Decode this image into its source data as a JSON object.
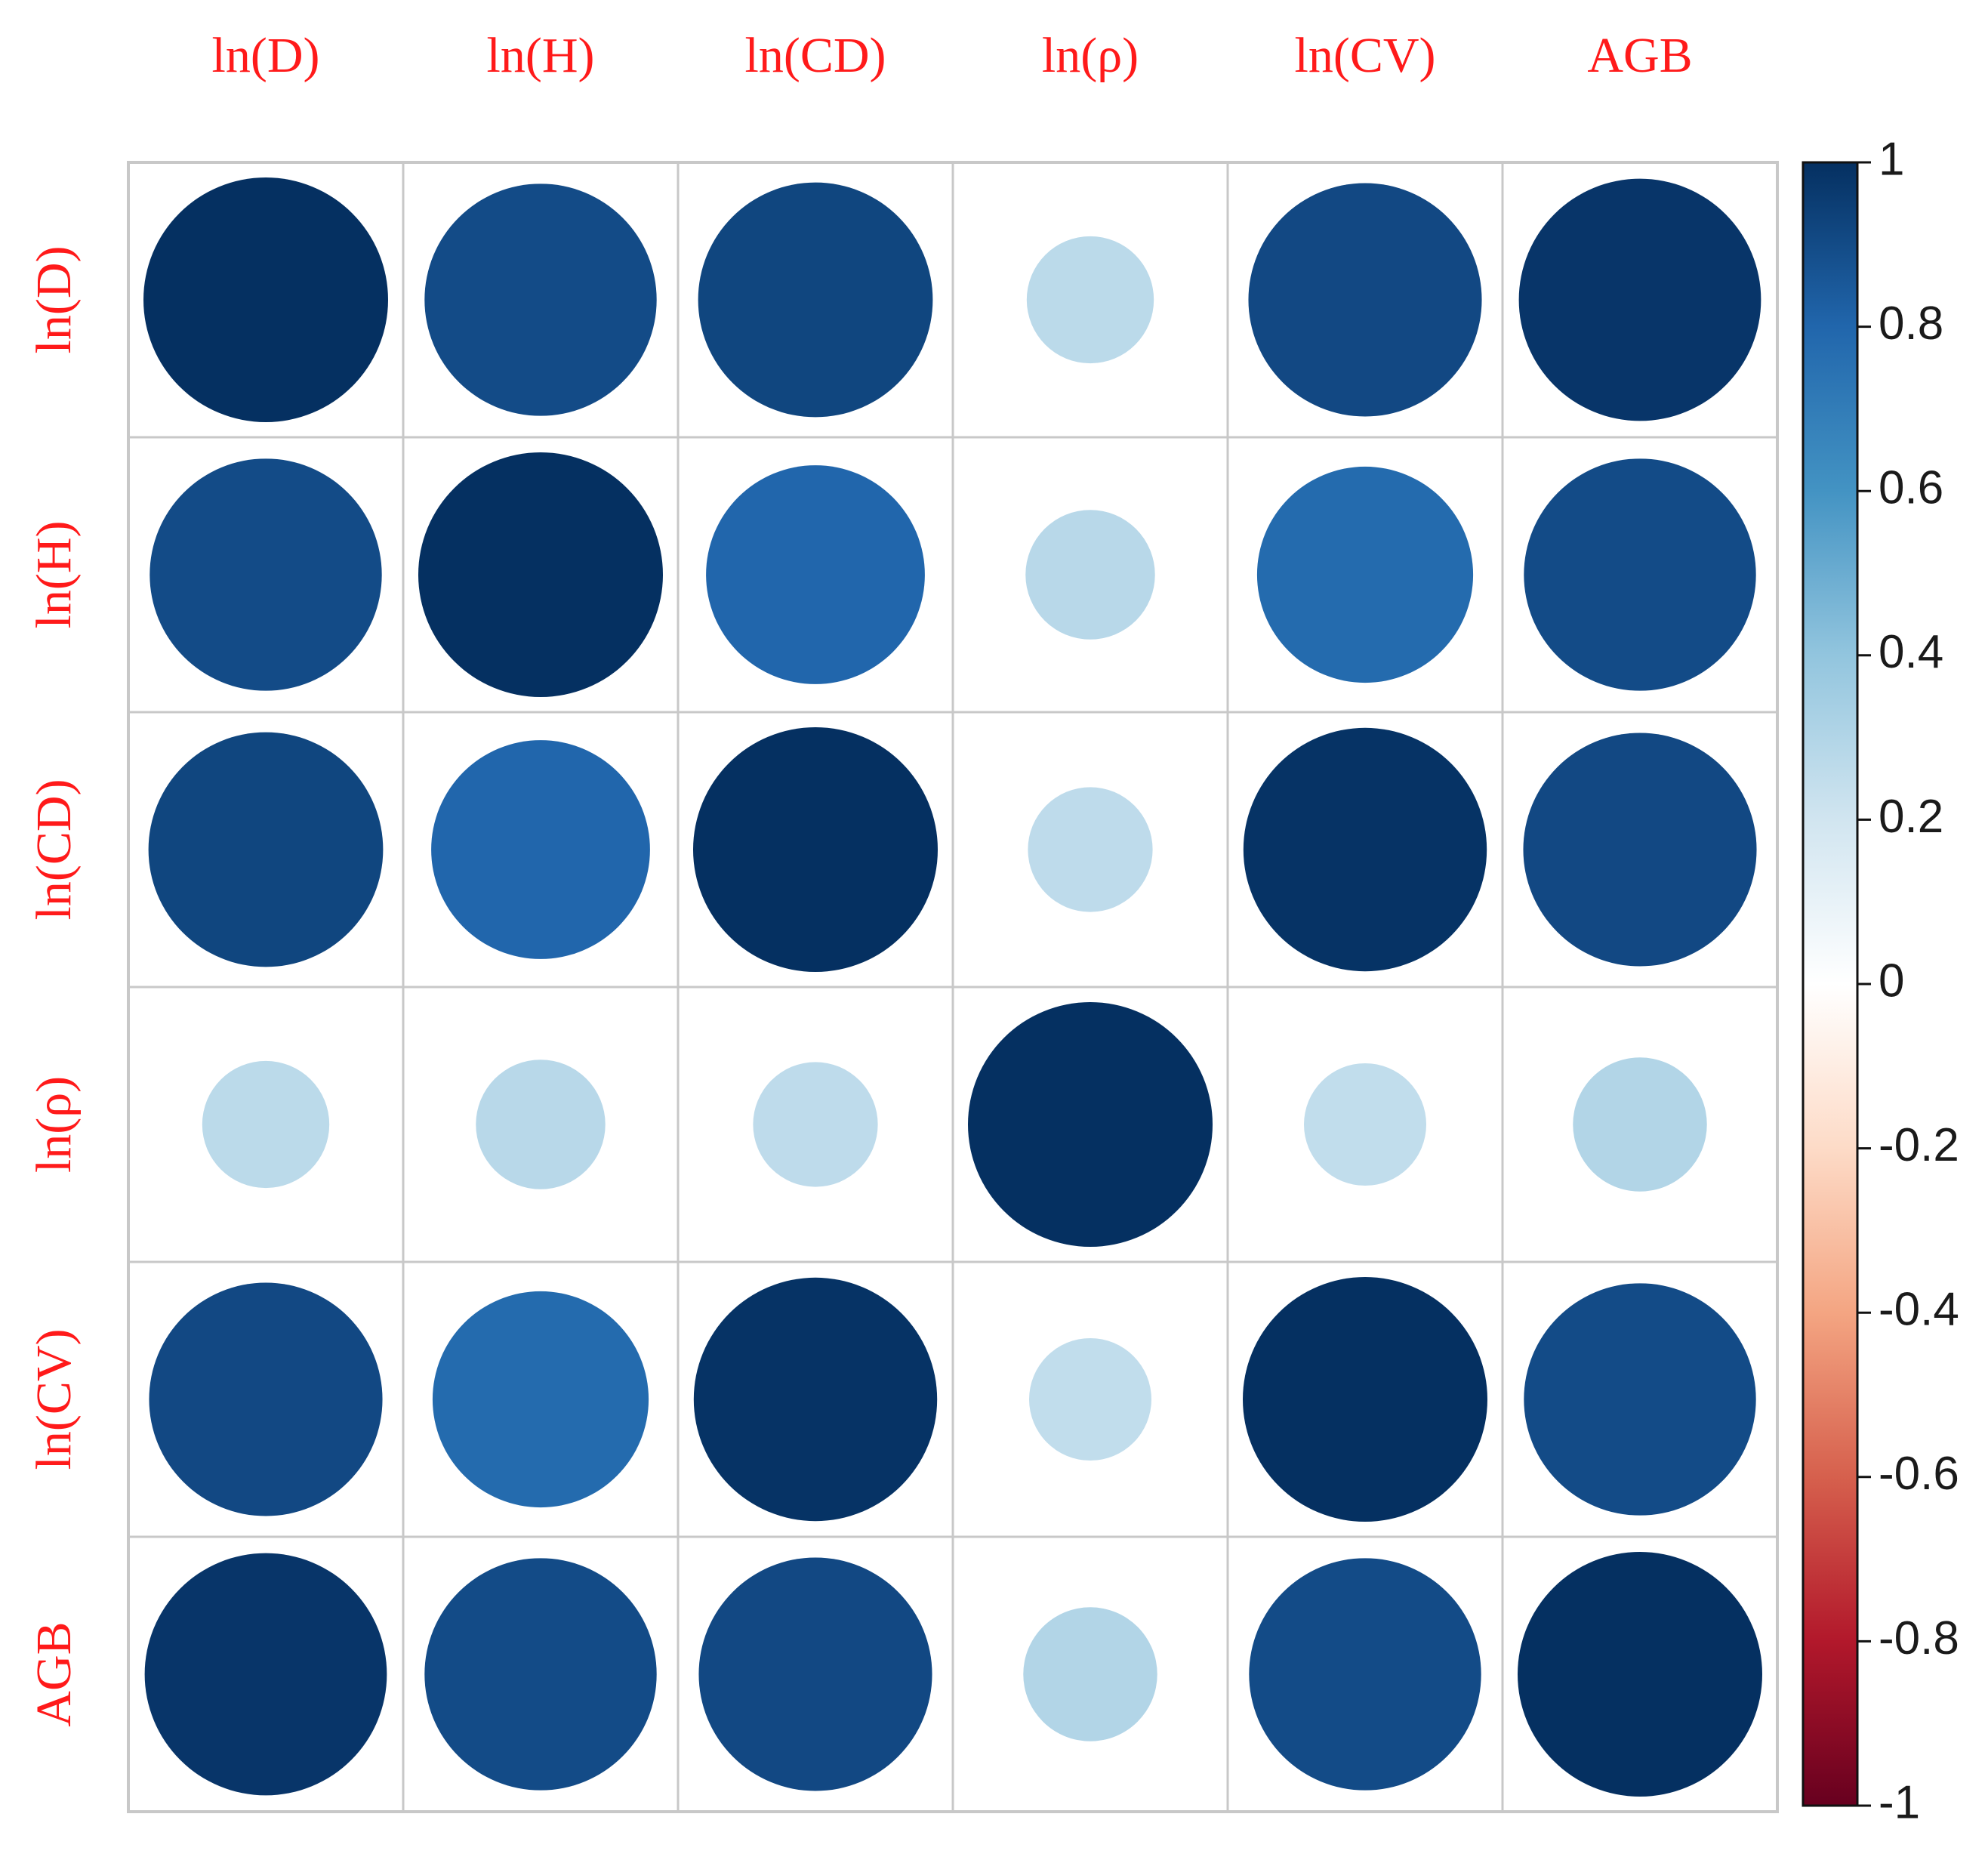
{
  "chart_data": {
    "type": "heatmap",
    "subtype": "correlation-circles",
    "title": "",
    "variables": [
      "ln(D)",
      "ln(H)",
      "ln(CD)",
      "ln(ρ)",
      "ln(CV)",
      "AGB"
    ],
    "matrix": [
      [
        1.0,
        0.9,
        0.92,
        0.27,
        0.91,
        0.98
      ],
      [
        0.9,
        1.0,
        0.8,
        0.28,
        0.78,
        0.9
      ],
      [
        0.92,
        0.8,
        1.0,
        0.26,
        0.99,
        0.91
      ],
      [
        0.27,
        0.28,
        0.26,
        1.0,
        0.25,
        0.3
      ],
      [
        0.91,
        0.78,
        0.99,
        0.25,
        1.0,
        0.9
      ],
      [
        0.98,
        0.9,
        0.91,
        0.3,
        0.9,
        1.0
      ]
    ],
    "colorbar": {
      "range": [
        -1,
        1
      ],
      "ticks": [
        "1",
        "0.8",
        "0.6",
        "0.4",
        "0.2",
        "0",
        "-0.2",
        "-0.4",
        "-0.6",
        "-0.8",
        "-1"
      ],
      "tick_values": [
        1,
        0.8,
        0.6,
        0.4,
        0.2,
        0,
        -0.2,
        -0.4,
        -0.6,
        -0.8,
        -1
      ],
      "colormap": "RdBu"
    },
    "label_color": "#ff1a1a",
    "grid": true,
    "legend": "right"
  }
}
